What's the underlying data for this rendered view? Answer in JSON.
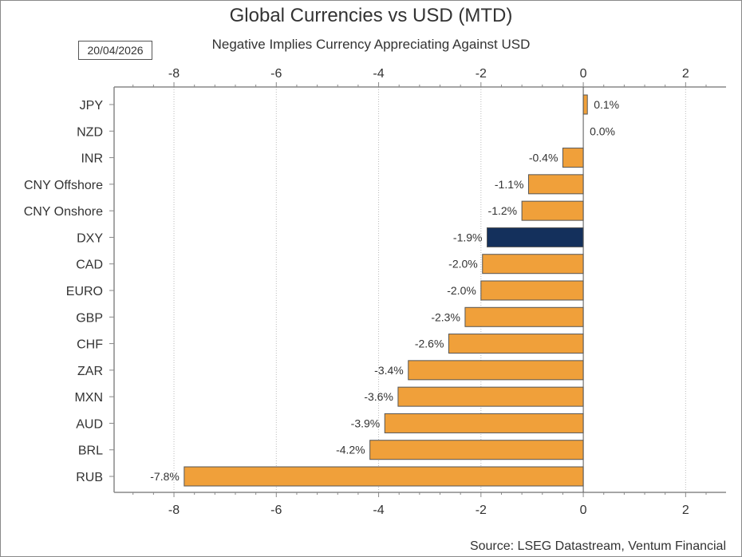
{
  "chart_data": {
    "type": "bar",
    "orientation": "horizontal",
    "title": "Global Currencies vs USD (MTD)",
    "subtitle": "Negative Implies Currency Appreciating Against USD",
    "date": "20/04/2026",
    "source": "Source: LSEG Datastream, Ventum Financial",
    "categories": [
      "JPY",
      "NZD",
      "INR",
      "CNY Offshore",
      "CNY Onshore",
      "DXY",
      "CAD",
      "EURO",
      "GBP",
      "CHF",
      "ZAR",
      "MXN",
      "AUD",
      "BRL",
      "RUB"
    ],
    "values": [
      0.08,
      0.0,
      -0.4,
      -1.07,
      -1.2,
      -1.88,
      -1.97,
      -2.0,
      -2.31,
      -2.63,
      -3.42,
      -3.62,
      -3.88,
      -4.17,
      -7.8
    ],
    "labels": [
      "0.1%",
      "0.0%",
      "-0.4%",
      "-1.1%",
      "-1.2%",
      "-1.9%",
      "-2.0%",
      "-2.0%",
      "-2.3%",
      "-2.6%",
      "-3.4%",
      "-3.6%",
      "-3.9%",
      "-4.2%",
      "-7.8%"
    ],
    "highlight": "DXY",
    "xlim": [
      -9.17,
      2.79
    ],
    "xticks": [
      -8,
      -6,
      -4,
      -2,
      0,
      2
    ],
    "xtick_labels": [
      "-8",
      "-6",
      "-4",
      "-2",
      "0",
      "2"
    ],
    "grid": "vertical dotted",
    "colors": {
      "bar": "#F0A03A",
      "highlight": "#14305C",
      "outline": "#555555"
    }
  }
}
